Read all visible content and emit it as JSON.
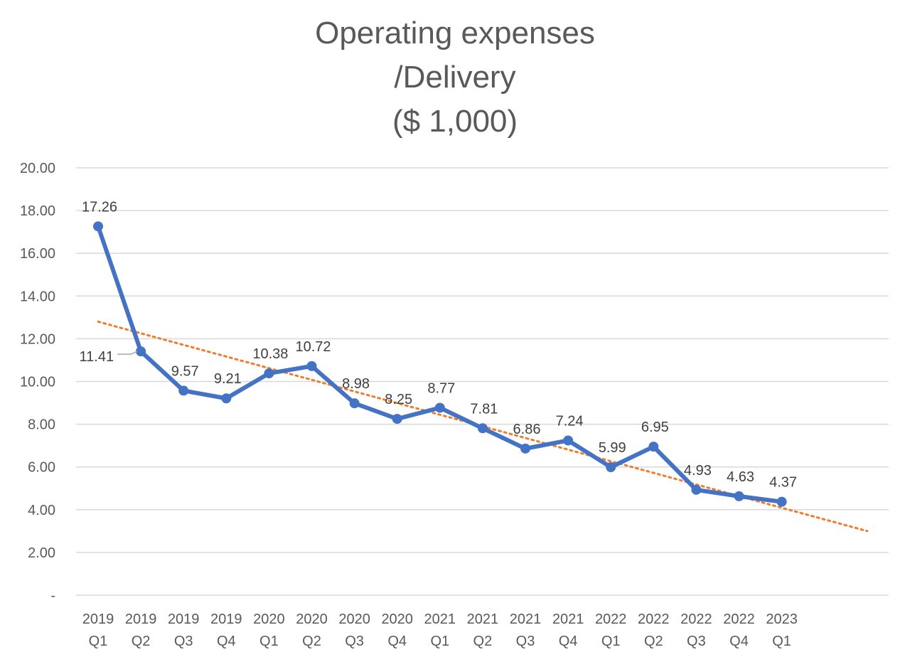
{
  "chart_data": {
    "type": "line",
    "title": [
      "Operating expenses",
      "/Delivery",
      "($ 1,000)"
    ],
    "categories": [
      "2019 Q1",
      "2019 Q2",
      "2019 Q3",
      "2019 Q4",
      "2020 Q1",
      "2020 Q2",
      "2020 Q3",
      "2020 Q4",
      "2021 Q1",
      "2021 Q2",
      "2021 Q3",
      "2021 Q4",
      "2022 Q1",
      "2022 Q2",
      "2022 Q3",
      "2022 Q4",
      "2023 Q1"
    ],
    "series": [
      {
        "values": [
          17.26,
          11.41,
          9.57,
          9.21,
          10.38,
          10.72,
          8.98,
          8.25,
          8.77,
          7.81,
          6.86,
          7.24,
          5.99,
          6.95,
          4.93,
          4.63,
          4.37
        ],
        "data_labels": [
          "17.26",
          "11.41",
          "9.57",
          "9.21",
          "10.38",
          "10.72",
          "8.98",
          "8.25",
          "8.77",
          "7.81",
          "6.86",
          "7.24",
          "5.99",
          "6.95",
          "4.93",
          "4.63",
          "4.37"
        ],
        "color": "#4472C4"
      }
    ],
    "trendline": {
      "type": "linear",
      "style": "dotted",
      "color": "#ED7D31",
      "start": 12.8,
      "end": 3.0,
      "forward_periods": 2
    },
    "yticks": [
      "-",
      "2.00",
      "4.00",
      "6.00",
      "8.00",
      "10.00",
      "12.00",
      "14.00",
      "16.00",
      "18.00",
      "20.00"
    ],
    "ylim": [
      0,
      20
    ],
    "grid": true,
    "legend": "none"
  }
}
